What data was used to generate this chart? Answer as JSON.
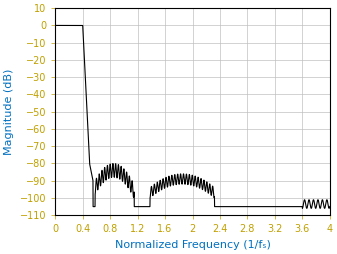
{
  "title": "",
  "xlabel": "Normalized Frequency (1/fₛ)",
  "ylabel": "Magnitude (dB)",
  "xlim": [
    0,
    4
  ],
  "ylim": [
    -110,
    10
  ],
  "xticks": [
    0,
    0.4,
    0.8,
    1.2,
    1.6,
    2.0,
    2.4,
    2.8,
    3.2,
    3.6,
    4.0
  ],
  "yticks": [
    10,
    0,
    -10,
    -20,
    -30,
    -40,
    -50,
    -60,
    -70,
    -80,
    -90,
    -100,
    -110
  ],
  "line_color": "#000000",
  "grid_color": "#c0c0c0",
  "axis_label_color": "#0070c0",
  "background_color": "#ffffff",
  "tick_label_color": "#c0a000",
  "xlabel_color": "#0070c0",
  "ylabel_color": "#0070c0",
  "figsize": [
    3.37,
    2.54
  ],
  "dpi": 100
}
